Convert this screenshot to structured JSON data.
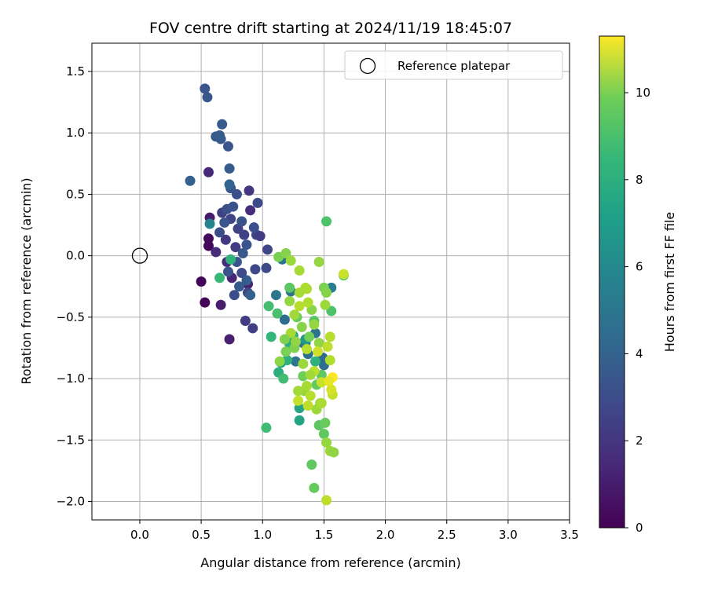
{
  "chart_data": {
    "type": "scatter",
    "title": "FOV centre drift starting at 2024/11/19 18:45:07",
    "xlabel": "Angular distance from reference (arcmin)",
    "ylabel": "Rotation from reference (arcmin)",
    "xlim": [
      -0.39,
      3.5
    ],
    "ylim": [
      -2.15,
      1.73
    ],
    "xticks": [
      "0.0",
      "0.5",
      "1.0",
      "1.5",
      "2.0",
      "2.5",
      "3.0",
      "3.5"
    ],
    "xtick_values": [
      0,
      0.5,
      1.0,
      1.5,
      2.0,
      2.5,
      3.0,
      3.5
    ],
    "yticks": [
      "1.5",
      "1.0",
      "0.5",
      "0.0",
      "−0.5",
      "−1.0",
      "−1.5",
      "−2.0"
    ],
    "ytick_values": [
      1.5,
      1.0,
      0.5,
      0.0,
      -0.5,
      -1.0,
      -1.5,
      -2.0
    ],
    "grid": true,
    "legend": {
      "placement": "top-right",
      "entries": [
        "Reference platepar"
      ]
    },
    "reference_point": {
      "x": 0.0,
      "y": 0.0
    },
    "colorbar": {
      "label": "Hours from first FF file",
      "range": [
        0,
        11.3
      ],
      "ticks": [
        "0",
        "2",
        "4",
        "6",
        "8",
        "10"
      ],
      "tick_values": [
        0,
        2,
        4,
        6,
        8,
        10
      ],
      "colormap": "viridis"
    },
    "points": [
      {
        "x": 0.5,
        "y": -0.21,
        "c": 0.1
      },
      {
        "x": 0.53,
        "y": -0.38,
        "c": 0.1
      },
      {
        "x": 0.56,
        "y": 0.08,
        "c": 0.2
      },
      {
        "x": 0.56,
        "y": 0.14,
        "c": 0.3
      },
      {
        "x": 0.57,
        "y": 0.31,
        "c": 0.8
      },
      {
        "x": 0.66,
        "y": -0.4,
        "c": 0.9
      },
      {
        "x": 0.73,
        "y": -0.68,
        "c": 1.0
      },
      {
        "x": 0.56,
        "y": 0.68,
        "c": 1.3
      },
      {
        "x": 0.62,
        "y": 0.03,
        "c": 1.4
      },
      {
        "x": 0.71,
        "y": -0.05,
        "c": 1.5
      },
      {
        "x": 0.75,
        "y": -0.18,
        "c": 1.2
      },
      {
        "x": 0.88,
        "y": -0.23,
        "c": 1.1
      },
      {
        "x": 0.9,
        "y": 0.37,
        "c": 1.5
      },
      {
        "x": 0.89,
        "y": 0.53,
        "c": 1.8
      },
      {
        "x": 0.86,
        "y": -0.53,
        "c": 2.0
      },
      {
        "x": 0.92,
        "y": -0.59,
        "c": 2.1
      },
      {
        "x": 0.7,
        "y": 0.13,
        "c": 1.9
      },
      {
        "x": 0.78,
        "y": 0.07,
        "c": 2.0
      },
      {
        "x": 0.85,
        "y": 0.17,
        "c": 2.2
      },
      {
        "x": 0.95,
        "y": 0.17,
        "c": 2.3
      },
      {
        "x": 0.67,
        "y": 0.35,
        "c": 2.2
      },
      {
        "x": 0.74,
        "y": 0.3,
        "c": 2.4
      },
      {
        "x": 0.8,
        "y": 0.22,
        "c": 2.3
      },
      {
        "x": 0.96,
        "y": 0.43,
        "c": 2.5
      },
      {
        "x": 0.94,
        "y": -0.11,
        "c": 2.5
      },
      {
        "x": 0.88,
        "y": -0.3,
        "c": 2.4
      },
      {
        "x": 0.83,
        "y": -0.14,
        "c": 2.6
      },
      {
        "x": 0.77,
        "y": -0.32,
        "c": 2.7
      },
      {
        "x": 0.98,
        "y": 0.16,
        "c": 2.0
      },
      {
        "x": 1.04,
        "y": 0.05,
        "c": 2.4
      },
      {
        "x": 1.03,
        "y": -0.1,
        "c": 2.6
      },
      {
        "x": 0.93,
        "y": 0.23,
        "c": 2.8
      },
      {
        "x": 0.65,
        "y": 0.19,
        "c": 2.7
      },
      {
        "x": 0.71,
        "y": 0.38,
        "c": 2.8
      },
      {
        "x": 0.76,
        "y": 0.4,
        "c": 2.9
      },
      {
        "x": 0.69,
        "y": 0.27,
        "c": 3.0
      },
      {
        "x": 0.74,
        "y": 0.55,
        "c": 3.0
      },
      {
        "x": 0.73,
        "y": 0.71,
        "c": 3.3
      },
      {
        "x": 0.79,
        "y": 0.5,
        "c": 2.8
      },
      {
        "x": 0.66,
        "y": 0.95,
        "c": 3.2
      },
      {
        "x": 0.62,
        "y": 0.97,
        "c": 3.1
      },
      {
        "x": 0.67,
        "y": 1.07,
        "c": 3.2
      },
      {
        "x": 0.72,
        "y": 0.89,
        "c": 3.0
      },
      {
        "x": 0.53,
        "y": 1.36,
        "c": 3.0
      },
      {
        "x": 0.55,
        "y": 1.29,
        "c": 3.1
      },
      {
        "x": 0.41,
        "y": 0.61,
        "c": 3.5
      },
      {
        "x": 0.65,
        "y": 0.98,
        "c": 3.3
      },
      {
        "x": 0.73,
        "y": 0.58,
        "c": 3.6
      },
      {
        "x": 0.84,
        "y": 0.02,
        "c": 3.1
      },
      {
        "x": 0.87,
        "y": -0.2,
        "c": 3.3
      },
      {
        "x": 0.81,
        "y": -0.25,
        "c": 3.2
      },
      {
        "x": 0.9,
        "y": -0.32,
        "c": 3.4
      },
      {
        "x": 0.79,
        "y": -0.05,
        "c": 3.0
      },
      {
        "x": 0.72,
        "y": -0.13,
        "c": 2.9
      },
      {
        "x": 0.83,
        "y": 0.28,
        "c": 2.9
      },
      {
        "x": 0.87,
        "y": 0.09,
        "c": 3.0
      },
      {
        "x": 1.11,
        "y": -0.32,
        "c": 4.5
      },
      {
        "x": 1.18,
        "y": -0.52,
        "c": 4.0
      },
      {
        "x": 1.16,
        "y": -0.03,
        "c": 4.3
      },
      {
        "x": 1.23,
        "y": -0.29,
        "c": 4.2
      },
      {
        "x": 1.33,
        "y": -0.71,
        "c": 4.0
      },
      {
        "x": 1.37,
        "y": -0.8,
        "c": 4.1
      },
      {
        "x": 1.43,
        "y": -0.63,
        "c": 4.3
      },
      {
        "x": 1.49,
        "y": -0.83,
        "c": 3.9
      },
      {
        "x": 1.5,
        "y": -0.89,
        "c": 4.0
      },
      {
        "x": 1.27,
        "y": -0.86,
        "c": 4.4
      },
      {
        "x": 1.35,
        "y": -0.71,
        "c": 4.6
      },
      {
        "x": 1.56,
        "y": -0.26,
        "c": 4.8
      },
      {
        "x": 0.57,
        "y": 0.26,
        "c": 5.1
      },
      {
        "x": 1.15,
        "y": -0.87,
        "c": 6.2
      },
      {
        "x": 1.35,
        "y": -0.68,
        "c": 6.0
      },
      {
        "x": 1.3,
        "y": -1.24,
        "c": 6.5
      },
      {
        "x": 1.3,
        "y": -1.34,
        "c": 6.6
      },
      {
        "x": 1.13,
        "y": -0.95,
        "c": 7.1
      },
      {
        "x": 1.2,
        "y": -0.85,
        "c": 7.2
      },
      {
        "x": 1.25,
        "y": -0.65,
        "c": 6.9
      },
      {
        "x": 1.22,
        "y": -0.72,
        "c": 7.0
      },
      {
        "x": 1.43,
        "y": -0.86,
        "c": 7.2
      },
      {
        "x": 0.74,
        "y": -0.03,
        "c": 7.3
      },
      {
        "x": 0.65,
        "y": -0.18,
        "c": 7.6
      },
      {
        "x": 1.03,
        "y": -1.4,
        "c": 7.8
      },
      {
        "x": 1.07,
        "y": -0.66,
        "c": 7.5
      },
      {
        "x": 1.17,
        "y": -1.0,
        "c": 7.8
      },
      {
        "x": 1.05,
        "y": -0.41,
        "c": 7.9
      },
      {
        "x": 1.12,
        "y": -0.47,
        "c": 8.0
      },
      {
        "x": 1.52,
        "y": 0.28,
        "c": 8.1
      },
      {
        "x": 1.66,
        "y": -0.16,
        "c": 8.2
      },
      {
        "x": 1.56,
        "y": -0.45,
        "c": 8.1
      },
      {
        "x": 1.42,
        "y": -0.53,
        "c": 8.3
      },
      {
        "x": 1.46,
        "y": -1.38,
        "c": 8.4
      },
      {
        "x": 1.5,
        "y": -1.45,
        "c": 8.5
      },
      {
        "x": 1.44,
        "y": -1.05,
        "c": 8.6
      },
      {
        "x": 1.4,
        "y": -1.7,
        "c": 8.5
      },
      {
        "x": 1.42,
        "y": -1.89,
        "c": 8.6
      },
      {
        "x": 1.22,
        "y": -0.26,
        "c": 8.4
      },
      {
        "x": 1.28,
        "y": -0.5,
        "c": 8.7
      },
      {
        "x": 1.33,
        "y": -0.98,
        "c": 8.8
      },
      {
        "x": 1.38,
        "y": -0.66,
        "c": 8.9
      },
      {
        "x": 1.48,
        "y": -0.97,
        "c": 8.5
      },
      {
        "x": 1.51,
        "y": -1.36,
        "c": 8.7
      },
      {
        "x": 1.19,
        "y": -0.78,
        "c": 9.0
      },
      {
        "x": 1.26,
        "y": -0.75,
        "c": 9.1
      },
      {
        "x": 1.32,
        "y": -0.58,
        "c": 9.2
      },
      {
        "x": 1.4,
        "y": -0.44,
        "c": 9.3
      },
      {
        "x": 1.46,
        "y": -0.71,
        "c": 9.4
      },
      {
        "x": 1.47,
        "y": -1.2,
        "c": 9.3
      },
      {
        "x": 1.52,
        "y": -1.52,
        "c": 9.5
      },
      {
        "x": 1.55,
        "y": -1.59,
        "c": 9.6
      },
      {
        "x": 1.58,
        "y": -1.6,
        "c": 9.4
      },
      {
        "x": 1.34,
        "y": -1.1,
        "c": 9.5
      },
      {
        "x": 1.29,
        "y": -1.1,
        "c": 9.7
      },
      {
        "x": 1.36,
        "y": -1.06,
        "c": 9.8
      },
      {
        "x": 1.44,
        "y": -1.25,
        "c": 9.6
      },
      {
        "x": 1.48,
        "y": -1.2,
        "c": 9.9
      },
      {
        "x": 1.5,
        "y": -0.26,
        "c": 9.0
      },
      {
        "x": 1.52,
        "y": -0.3,
        "c": 9.2
      },
      {
        "x": 1.46,
        "y": -0.05,
        "c": 9.5
      },
      {
        "x": 1.51,
        "y": -0.4,
        "c": 9.6
      },
      {
        "x": 1.22,
        "y": -0.37,
        "c": 9.5
      },
      {
        "x": 1.26,
        "y": -0.48,
        "c": 9.7
      },
      {
        "x": 1.3,
        "y": -0.3,
        "c": 9.8
      },
      {
        "x": 1.35,
        "y": -0.26,
        "c": 9.9
      },
      {
        "x": 1.37,
        "y": -0.38,
        "c": 10.0
      },
      {
        "x": 1.3,
        "y": -0.41,
        "c": 10.1
      },
      {
        "x": 1.23,
        "y": -0.63,
        "c": 9.8
      },
      {
        "x": 1.36,
        "y": -0.76,
        "c": 10.1
      },
      {
        "x": 1.42,
        "y": -0.94,
        "c": 10.2
      },
      {
        "x": 1.39,
        "y": -1.14,
        "c": 10.1
      },
      {
        "x": 1.55,
        "y": -0.85,
        "c": 10.0
      },
      {
        "x": 1.57,
        "y": -1.13,
        "c": 10.3
      },
      {
        "x": 1.52,
        "y": -1.99,
        "c": 10.2
      },
      {
        "x": 1.37,
        "y": -1.22,
        "c": 10.2
      },
      {
        "x": 1.29,
        "y": -1.18,
        "c": 10.3
      },
      {
        "x": 1.13,
        "y": -0.01,
        "c": 9.0
      },
      {
        "x": 1.19,
        "y": 0.02,
        "c": 9.2
      },
      {
        "x": 1.23,
        "y": -0.04,
        "c": 9.6
      },
      {
        "x": 1.3,
        "y": -0.12,
        "c": 9.8
      },
      {
        "x": 1.55,
        "y": -0.66,
        "c": 10.1
      },
      {
        "x": 1.53,
        "y": -0.74,
        "c": 10.2
      },
      {
        "x": 1.66,
        "y": -0.15,
        "c": 10.4
      },
      {
        "x": 1.45,
        "y": -0.78,
        "c": 10.5
      },
      {
        "x": 1.48,
        "y": -1.03,
        "c": 10.4
      },
      {
        "x": 1.39,
        "y": -0.97,
        "c": 9.7
      },
      {
        "x": 1.42,
        "y": -0.56,
        "c": 9.5
      },
      {
        "x": 1.14,
        "y": -0.86,
        "c": 9.3
      },
      {
        "x": 1.18,
        "y": -0.68,
        "c": 9.1
      },
      {
        "x": 1.27,
        "y": -0.7,
        "c": 9.4
      },
      {
        "x": 1.33,
        "y": -0.88,
        "c": 9.6
      },
      {
        "x": 1.56,
        "y": -1.09,
        "c": 10.6
      },
      {
        "x": 1.57,
        "y": -0.99,
        "c": 11.3
      },
      {
        "x": 1.54,
        "y": -1.02,
        "c": 10.9
      },
      {
        "x": 1.36,
        "y": -0.27,
        "c": 9.9
      }
    ]
  }
}
